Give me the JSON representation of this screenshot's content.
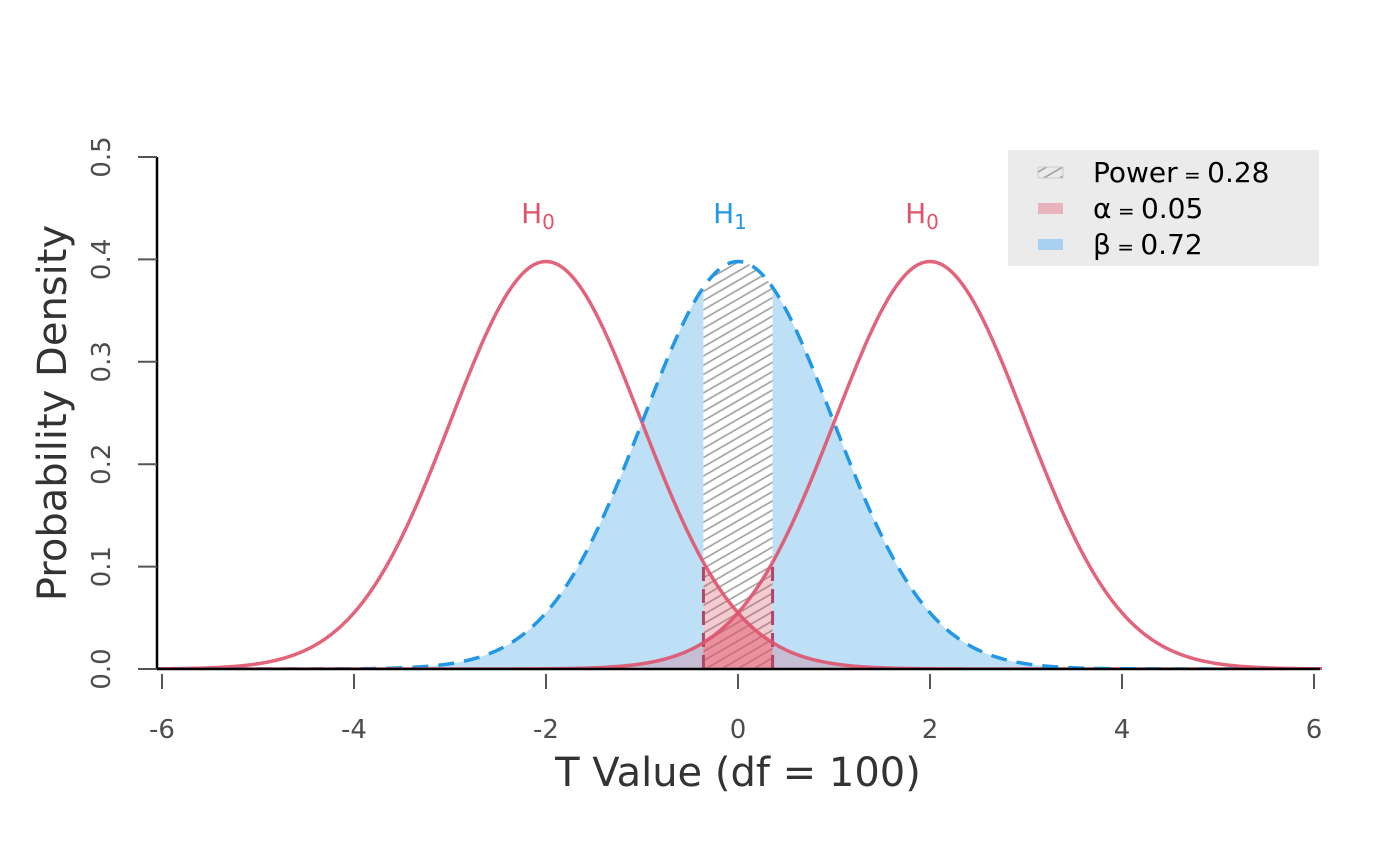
{
  "chart_data": {
    "type": "line",
    "xlabel": "T Value (df = 100)",
    "ylabel": "Probability Density",
    "xlim": [
      -6,
      6
    ],
    "ylim": [
      0,
      0.5
    ],
    "xticks": [
      -6,
      -4,
      -2,
      0,
      2,
      4,
      6
    ],
    "xtick_labels": [
      "-6",
      "-4",
      "-2",
      "0",
      "2",
      "4",
      "6"
    ],
    "yticks": [
      0,
      0.1,
      0.2,
      0.3,
      0.4,
      0.5
    ],
    "ytick_labels": [
      "0.0",
      "0.1",
      "0.2",
      "0.3",
      "0.4",
      "0.5"
    ],
    "grid": false,
    "df": 100,
    "critical_region": [
      -0.36,
      0.36
    ],
    "series": [
      {
        "label": "H",
        "subscript": "0",
        "distribution": "t",
        "center": -2,
        "style": "solid",
        "color": "#DF536B"
      },
      {
        "label": "H",
        "subscript": "1",
        "distribution": "t",
        "center": 0,
        "style": "dashed",
        "color": "#2297E6"
      },
      {
        "label": "H",
        "subscript": "0",
        "distribution": "t",
        "center": 2,
        "style": "solid",
        "color": "#DF536B"
      }
    ],
    "legend": {
      "placement": "top-right",
      "entries": [
        {
          "symbol": "Power",
          "value": "0.28",
          "fill": "hatch",
          "color": "#9e9e9e"
        },
        {
          "symbol": "α",
          "value": "0.05",
          "fill": "solid",
          "color": "#e8b4bd"
        },
        {
          "symbol": "β",
          "value": "0.72",
          "fill": "solid",
          "color": "#a9d1ef"
        }
      ],
      "equals": "="
    },
    "colors": {
      "h0": "#DF536B",
      "h1": "#2297E6",
      "beta_fill": "#bde0f7",
      "alpha_fill": "#DF536B",
      "hatch": "#9e9e9e",
      "legend_bg": "#ebebeb"
    }
  }
}
